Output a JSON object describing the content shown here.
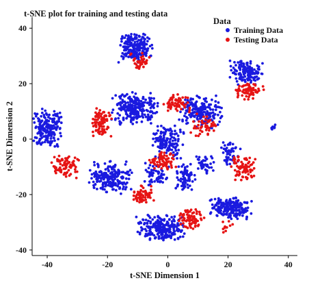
{
  "chart_data": {
    "type": "scatter",
    "title": "t-SNE plot for training and testing data",
    "xlabel": "t-SNE Dimension 1",
    "ylabel": "t-SNE Dimension 2",
    "xlim": [
      -45,
      43
    ],
    "ylim": [
      -42,
      44
    ],
    "xticks": [
      -40,
      -20,
      0,
      20,
      40
    ],
    "yticks": [
      40,
      20,
      0,
      -20,
      -40
    ],
    "grid": false,
    "legend": {
      "title": "Data",
      "placement": "top-right"
    },
    "series": [
      {
        "name": "Training Data",
        "color": "#1a1adf",
        "clusters": [
          {
            "center": [
              -11,
              33
            ],
            "spread": [
              5,
              4.5
            ],
            "count": 220
          },
          {
            "center": [
              26,
              24
            ],
            "spread": [
              4.5,
              4
            ],
            "count": 150
          },
          {
            "center": [
              -40,
              4
            ],
            "spread": [
              4.5,
              6
            ],
            "count": 210
          },
          {
            "center": [
              -11,
              11
            ],
            "spread": [
              6.5,
              5
            ],
            "count": 260
          },
          {
            "center": [
              11,
              10
            ],
            "spread": [
              6,
              5
            ],
            "count": 190
          },
          {
            "center": [
              0,
              -1
            ],
            "spread": [
              4.5,
              5
            ],
            "count": 140
          },
          {
            "center": [
              -19,
              -14
            ],
            "spread": [
              6,
              5
            ],
            "count": 220
          },
          {
            "center": [
              -4,
              -13
            ],
            "spread": [
              4,
              4
            ],
            "count": 60
          },
          {
            "center": [
              6,
              -14
            ],
            "spread": [
              3,
              5
            ],
            "count": 70
          },
          {
            "center": [
              21,
              -5
            ],
            "spread": [
              3,
              3.5
            ],
            "count": 50
          },
          {
            "center": [
              12,
              -9
            ],
            "spread": [
              3,
              3
            ],
            "count": 40
          },
          {
            "center": [
              -2,
              -32
            ],
            "spread": [
              7,
              4
            ],
            "count": 240
          },
          {
            "center": [
              21,
              -25
            ],
            "spread": [
              6,
              3.5
            ],
            "count": 200
          },
          {
            "center": [
              35,
              4
            ],
            "spread": [
              0.8,
              1.5
            ],
            "count": 8
          }
        ]
      },
      {
        "name": "Testing Data",
        "color": "#e61414",
        "clusters": [
          {
            "center": [
              -9,
              28
            ],
            "spread": [
              3,
              2.5
            ],
            "count": 40
          },
          {
            "center": [
              27,
              17
            ],
            "spread": [
              4,
              2.5
            ],
            "count": 70
          },
          {
            "center": [
              -22,
              6
            ],
            "spread": [
              3,
              4.5
            ],
            "count": 90
          },
          {
            "center": [
              -34,
              -10
            ],
            "spread": [
              4,
              3.5
            ],
            "count": 80
          },
          {
            "center": [
              3,
              13
            ],
            "spread": [
              4,
              3
            ],
            "count": 60
          },
          {
            "center": [
              -2,
              -8
            ],
            "spread": [
              4,
              3
            ],
            "count": 70
          },
          {
            "center": [
              -8,
              -20
            ],
            "spread": [
              3,
              3
            ],
            "count": 60
          },
          {
            "center": [
              8,
              -29
            ],
            "spread": [
              4,
              3
            ],
            "count": 80
          },
          {
            "center": [
              25,
              -10
            ],
            "spread": [
              3.5,
              4
            ],
            "count": 80
          },
          {
            "center": [
              12,
              5
            ],
            "spread": [
              4,
              3.5
            ],
            "count": 50
          },
          {
            "center": [
              20,
              -32
            ],
            "spread": [
              2,
              2
            ],
            "count": 10
          }
        ]
      }
    ]
  }
}
